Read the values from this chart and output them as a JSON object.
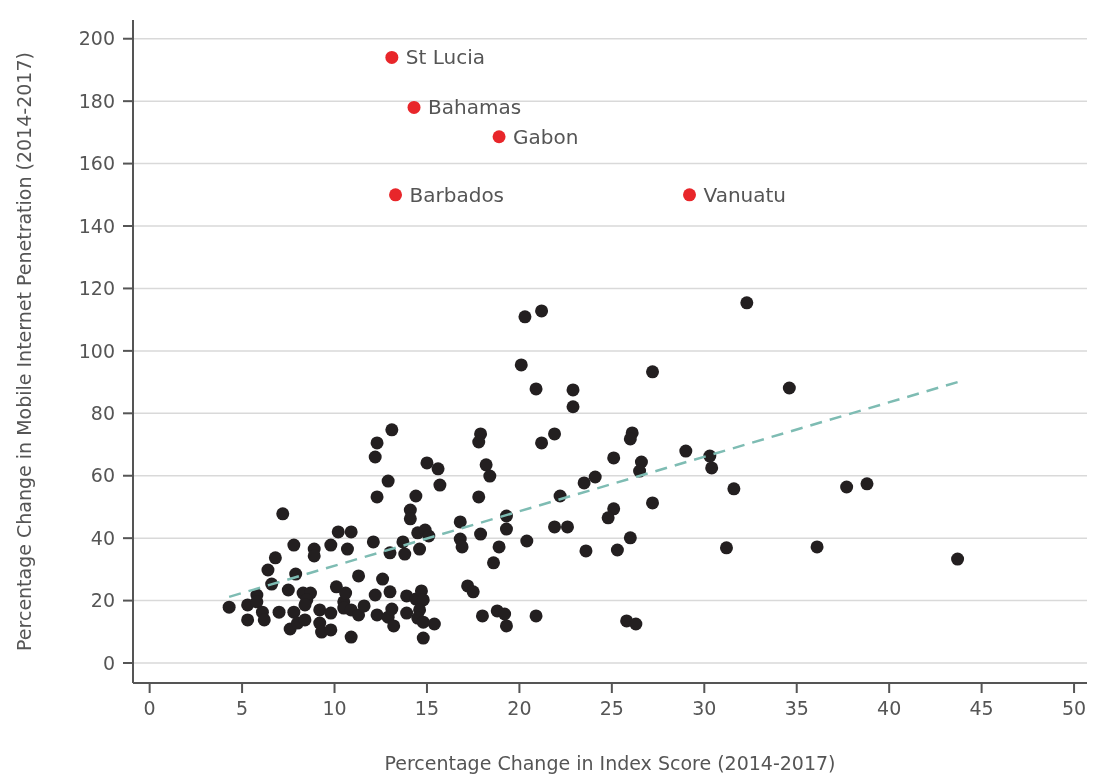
{
  "chart_data": {
    "type": "scatter",
    "xlabel": "Percentage Change in Index Score (2014-2017)",
    "ylabel": "Percentage Change in Mobile Internet Penetration (2014-2017)",
    "xlim": [
      -0.9,
      50.7
    ],
    "ylim": [
      -6.4,
      206
    ],
    "xticks": [
      0,
      5,
      10,
      15,
      20,
      25,
      30,
      35,
      40,
      45,
      50
    ],
    "yticks": [
      0,
      20,
      40,
      60,
      80,
      100,
      120,
      140,
      160,
      180,
      200
    ],
    "grid": "y",
    "marker": "circle",
    "series": [
      {
        "color": "#231f20",
        "x": [
          4.3,
          5.3,
          5.3,
          5.8,
          5.8,
          6.1,
          6.2,
          6.6,
          6.4,
          6.8,
          7.2,
          7.0,
          7.5,
          7.8,
          7.8,
          7.9,
          7.6,
          8.3,
          8.7,
          8.5,
          8.4,
          8.0,
          8.4,
          8.9,
          8.9,
          9.2,
          9.2,
          9.3,
          9.8,
          9.8,
          9.8,
          10.2,
          10.9,
          10.7,
          10.1,
          10.5,
          10.6,
          10.5,
          10.9,
          10.9,
          11.3,
          11.3,
          11.6,
          12.1,
          12.2,
          12.3,
          12.6,
          13.0,
          12.9,
          13.1,
          13.2,
          12.3,
          12.2,
          12.9,
          12.3,
          13.1,
          13.0,
          13.8,
          13.7,
          14.1,
          14.1,
          14.4,
          14.5,
          14.9,
          15.1,
          14.6,
          15.0,
          15.6,
          15.7,
          13.9,
          13.9,
          14.4,
          14.7,
          14.8,
          14.6,
          14.5,
          14.8,
          15.4,
          14.8,
          32.3,
          20.3,
          21.2,
          20.1,
          20.9,
          22.9,
          22.9,
          27.2,
          17.9,
          17.8,
          18.2,
          18.4,
          17.8,
          21.2,
          21.9,
          16.8,
          16.8,
          16.9,
          17.9,
          19.3,
          19.3,
          18.9,
          18.6,
          20.4,
          21.9,
          22.6,
          22.2,
          23.5,
          24.1,
          23.6,
          25.1,
          25.1,
          24.8,
          25.3,
          26.0,
          26.1,
          26.0,
          26.6,
          26.5,
          27.2,
          29.0,
          30.3,
          30.4,
          31.6,
          31.2,
          17.2,
          17.5,
          18.0,
          18.8,
          19.2,
          19.3,
          20.9,
          25.8,
          26.3,
          34.6,
          37.7,
          38.8,
          36.1,
          43.7
        ],
        "values": [
          17.9,
          18.6,
          13.8,
          21.8,
          19.6,
          16.3,
          13.8,
          25.3,
          29.8,
          33.7,
          47.8,
          16.3,
          23.4,
          16.3,
          37.8,
          28.5,
          10.9,
          22.4,
          22.4,
          20.2,
          18.6,
          12.8,
          13.8,
          36.5,
          34.3,
          17,
          12.8,
          9.9,
          10.6,
          16,
          37.8,
          42,
          42,
          36.5,
          24.4,
          19.6,
          22.4,
          17.6,
          17,
          8.3,
          27.9,
          15.4,
          18.3,
          38.8,
          21.8,
          15.4,
          26.9,
          22.8,
          14.7,
          17.3,
          11.9,
          70.5,
          66,
          58.3,
          53.2,
          74.7,
          35.3,
          34.9,
          38.8,
          49,
          46.2,
          53.5,
          41.7,
          42.6,
          40.7,
          36.5,
          64.1,
          62.2,
          57,
          21.5,
          16,
          20.5,
          23.1,
          20.2,
          17,
          14.4,
          8,
          12.5,
          13.1,
          115.4,
          110.9,
          112.8,
          95.5,
          87.8,
          87.5,
          82.1,
          93.3,
          73.4,
          70.8,
          63.5,
          59.9,
          53.2,
          70.5,
          73.4,
          45.2,
          39.7,
          37.2,
          41.3,
          47.1,
          42.9,
          37.2,
          32.1,
          39.1,
          43.6,
          43.6,
          53.5,
          57.7,
          59.6,
          35.9,
          65.7,
          49.4,
          46.5,
          36.2,
          40.1,
          73.7,
          71.8,
          64.4,
          61.5,
          51.3,
          67.9,
          66.3,
          62.5,
          55.8,
          36.9,
          24.7,
          22.8,
          15.1,
          16.7,
          15.7,
          11.9,
          15.1,
          13.5,
          12.5,
          88.1,
          56.4,
          57.4,
          37.2,
          33.3
        ]
      },
      {
        "color": "#e8262a",
        "x": [
          13.1,
          14.3,
          18.9,
          13.3,
          29.2
        ],
        "values": [
          194,
          178,
          168.6,
          150,
          150
        ]
      },
      {
        "type": "line",
        "color": "#7ebcb3",
        "line_style": "dashed",
        "marker": "none",
        "x": [
          4.3,
          43.7
        ],
        "values": [
          21.2,
          90
        ]
      }
    ],
    "annotations": [
      {
        "text": "St Lucia",
        "x": 13.1,
        "y": 194
      },
      {
        "text": "Bahamas",
        "x": 14.3,
        "y": 178
      },
      {
        "text": "Gabon",
        "x": 18.9,
        "y": 168.6
      },
      {
        "text": "Barbados",
        "x": 13.3,
        "y": 150
      },
      {
        "text": "Vanuatu",
        "x": 29.2,
        "y": 150
      }
    ]
  }
}
